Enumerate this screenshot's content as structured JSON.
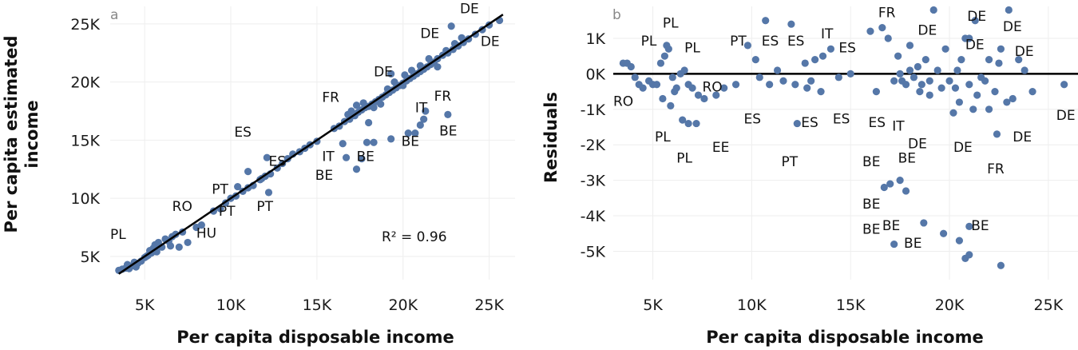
{
  "colors": {
    "points": "#5577a8",
    "line": "#000000",
    "grid": "#eeeeee"
  },
  "chart_data": [
    {
      "panel": "a",
      "type": "scatter",
      "xlabel": "Per capita disposable income",
      "ylabel": "Per capita estimated income",
      "xlim": [
        3000,
        26500
      ],
      "ylim": [
        3000,
        26500
      ],
      "x_ticks": [
        5000,
        10000,
        15000,
        20000,
        25000
      ],
      "x_tick_labels": [
        "5K",
        "10K",
        "15K",
        "20K",
        "25K"
      ],
      "y_ticks": [
        5000,
        10000,
        15000,
        20000,
        25000
      ],
      "y_tick_labels": [
        "5K",
        "10K",
        "15K",
        "20K",
        "25K"
      ],
      "fit_line": [
        [
          3500,
          3500
        ],
        [
          25800,
          25800
        ]
      ],
      "annotation": "R² = 0.96",
      "points": [
        [
          3500,
          3800
        ],
        [
          3700,
          3900
        ],
        [
          3900,
          4000
        ],
        [
          4100,
          3950
        ],
        [
          4300,
          4200
        ],
        [
          4500,
          4100
        ],
        [
          4600,
          4400
        ],
        [
          4800,
          4600
        ],
        [
          5000,
          4900
        ],
        [
          5200,
          5100
        ],
        [
          5400,
          5300
        ],
        [
          5500,
          5700
        ],
        [
          5600,
          6000
        ],
        [
          5800,
          6200
        ],
        [
          6000,
          5800
        ],
        [
          6200,
          6500
        ],
        [
          6400,
          6300
        ],
        [
          6600,
          6700
        ],
        [
          6800,
          6900
        ],
        [
          7200,
          7100
        ],
        [
          4000,
          4300
        ],
        [
          4400,
          4500
        ],
        [
          5100,
          5000
        ],
        [
          5300,
          5500
        ],
        [
          5700,
          5400
        ],
        [
          6500,
          5900
        ],
        [
          7000,
          5800
        ],
        [
          7500,
          6200
        ],
        [
          8000,
          7500
        ],
        [
          8300,
          7700
        ],
        [
          9000,
          8900
        ],
        [
          9400,
          9100
        ],
        [
          9700,
          9600
        ],
        [
          10000,
          10000
        ],
        [
          10300,
          10200
        ],
        [
          10700,
          10600
        ],
        [
          11000,
          10900
        ],
        [
          11300,
          11100
        ],
        [
          11700,
          11600
        ],
        [
          12000,
          11900
        ],
        [
          12300,
          12100
        ],
        [
          12700,
          12600
        ],
        [
          13000,
          13000
        ],
        [
          13300,
          13400
        ],
        [
          13600,
          13800
        ],
        [
          14000,
          14000
        ],
        [
          14300,
          14300
        ],
        [
          14600,
          14600
        ],
        [
          15000,
          14900
        ],
        [
          10400,
          11000
        ],
        [
          11000,
          12300
        ],
        [
          12100,
          13500
        ],
        [
          11800,
          11700
        ],
        [
          12200,
          10500
        ],
        [
          16000,
          16000
        ],
        [
          16300,
          16200
        ],
        [
          16600,
          16600
        ],
        [
          16900,
          16800
        ],
        [
          17200,
          17100
        ],
        [
          17400,
          17400
        ],
        [
          17600,
          17600
        ],
        [
          17800,
          17800
        ],
        [
          18000,
          17900
        ],
        [
          18200,
          18100
        ],
        [
          18400,
          18300
        ],
        [
          18600,
          18500
        ],
        [
          18800,
          18700
        ],
        [
          19000,
          18900
        ],
        [
          19200,
          19100
        ],
        [
          19400,
          19300
        ],
        [
          19600,
          19500
        ],
        [
          19800,
          19700
        ],
        [
          20000,
          19900
        ],
        [
          20200,
          20100
        ],
        [
          20400,
          20300
        ],
        [
          20600,
          20500
        ],
        [
          20800,
          20700
        ],
        [
          21000,
          20900
        ],
        [
          21200,
          21100
        ],
        [
          21400,
          21300
        ],
        [
          21600,
          21500
        ],
        [
          21800,
          21700
        ],
        [
          22000,
          22000
        ],
        [
          22300,
          22300
        ],
        [
          22600,
          22500
        ],
        [
          22900,
          22800
        ],
        [
          23200,
          23100
        ],
        [
          23500,
          23400
        ],
        [
          23800,
          23700
        ],
        [
          24200,
          24100
        ],
        [
          24600,
          24500
        ],
        [
          25000,
          24900
        ],
        [
          25600,
          25300
        ],
        [
          17000,
          17500
        ],
        [
          16800,
          17200
        ],
        [
          17300,
          18000
        ],
        [
          17700,
          18200
        ],
        [
          18300,
          17800
        ],
        [
          18700,
          18100
        ],
        [
          19100,
          19400
        ],
        [
          19500,
          20000
        ],
        [
          20100,
          20600
        ],
        [
          20500,
          21000
        ],
        [
          21000,
          21400
        ],
        [
          21500,
          22000
        ],
        [
          22000,
          21300
        ],
        [
          22500,
          22700
        ],
        [
          23000,
          23300
        ],
        [
          23400,
          23800
        ],
        [
          19300,
          20700
        ],
        [
          22800,
          24800
        ],
        [
          16500,
          14700
        ],
        [
          16700,
          13500
        ],
        [
          17300,
          12500
        ],
        [
          17600,
          13400
        ],
        [
          17900,
          14800
        ],
        [
          18300,
          14800
        ],
        [
          19300,
          15100
        ],
        [
          20300,
          15600
        ],
        [
          20700,
          15600
        ],
        [
          21000,
          16300
        ],
        [
          21200,
          16800
        ],
        [
          22600,
          17200
        ],
        [
          21300,
          17500
        ],
        [
          18000,
          16500
        ],
        [
          20000,
          19700
        ]
      ],
      "point_labels": [
        {
          "text": "DE",
          "x": 23300,
          "y": 25900
        },
        {
          "text": "DE",
          "x": 21000,
          "y": 23800
        },
        {
          "text": "DE",
          "x": 24500,
          "y": 23100
        },
        {
          "text": "DE",
          "x": 18300,
          "y": 20500
        },
        {
          "text": "FR",
          "x": 15300,
          "y": 18300
        },
        {
          "text": "FR",
          "x": 21800,
          "y": 18400
        },
        {
          "text": "IT",
          "x": 20700,
          "y": 17400
        },
        {
          "text": "BE",
          "x": 22100,
          "y": 15400
        },
        {
          "text": "BE",
          "x": 19900,
          "y": 14500
        },
        {
          "text": "ES",
          "x": 10200,
          "y": 15300
        },
        {
          "text": "ES",
          "x": 12200,
          "y": 12800
        },
        {
          "text": "IT",
          "x": 15300,
          "y": 13200
        },
        {
          "text": "BE",
          "x": 17300,
          "y": 13200
        },
        {
          "text": "BE",
          "x": 14900,
          "y": 11600
        },
        {
          "text": "PT",
          "x": 8900,
          "y": 10400
        },
        {
          "text": "RO",
          "x": 6600,
          "y": 8900
        },
        {
          "text": "PT",
          "x": 9300,
          "y": 8500
        },
        {
          "text": "PT",
          "x": 11500,
          "y": 8900
        },
        {
          "text": "HU",
          "x": 8000,
          "y": 6600
        },
        {
          "text": "PL",
          "x": 3000,
          "y": 6500
        }
      ]
    },
    {
      "panel": "b",
      "type": "scatter",
      "xlabel": "Per capita disposable income",
      "ylabel": "Residuals",
      "xlim": [
        3000,
        26500
      ],
      "ylim": [
        -5800,
        1900
      ],
      "x_ticks": [
        5000,
        10000,
        15000,
        20000,
        25000
      ],
      "x_tick_labels": [
        "5K",
        "10K",
        "15K",
        "20K",
        "25K"
      ],
      "y_ticks": [
        1000,
        0,
        -1000,
        -2000,
        -3000,
        -4000,
        -5000
      ],
      "y_tick_labels": [
        "1K",
        "0K",
        "-1K",
        "-2K",
        "-3K",
        "-4K",
        "-5K"
      ],
      "reference_line": 0,
      "points": [
        [
          3500,
          300
        ],
        [
          3700,
          300
        ],
        [
          3900,
          200
        ],
        [
          4100,
          -100
        ],
        [
          4300,
          -300
        ],
        [
          4500,
          -400
        ],
        [
          4800,
          -200
        ],
        [
          5000,
          -300
        ],
        [
          5200,
          -300
        ],
        [
          5400,
          300
        ],
        [
          5600,
          500
        ],
        [
          5700,
          800
        ],
        [
          5800,
          700
        ],
        [
          6000,
          -100
        ],
        [
          6200,
          -400
        ],
        [
          6400,
          0
        ],
        [
          6600,
          100
        ],
        [
          6800,
          -300
        ],
        [
          7000,
          -400
        ],
        [
          7300,
          -600
        ],
        [
          5500,
          -700
        ],
        [
          5900,
          -900
        ],
        [
          6100,
          -500
        ],
        [
          6500,
          -1300
        ],
        [
          6800,
          -1400
        ],
        [
          7200,
          -1400
        ],
        [
          7600,
          -700
        ],
        [
          8200,
          -600
        ],
        [
          8600,
          -400
        ],
        [
          9200,
          -300
        ],
        [
          9800,
          800
        ],
        [
          10200,
          400
        ],
        [
          10400,
          -100
        ],
        [
          10700,
          1500
        ],
        [
          10900,
          -300
        ],
        [
          11300,
          100
        ],
        [
          11600,
          -200
        ],
        [
          12000,
          1400
        ],
        [
          12200,
          -300
        ],
        [
          12300,
          -1400
        ],
        [
          12700,
          300
        ],
        [
          13000,
          -200
        ],
        [
          13200,
          400
        ],
        [
          13600,
          500
        ],
        [
          14000,
          700
        ],
        [
          14400,
          -100
        ],
        [
          15000,
          0
        ],
        [
          12800,
          -400
        ],
        [
          13500,
          -500
        ],
        [
          16000,
          1200
        ],
        [
          16300,
          -500
        ],
        [
          16600,
          1300
        ],
        [
          16900,
          1000
        ],
        [
          17200,
          -200
        ],
        [
          17400,
          500
        ],
        [
          17600,
          -200
        ],
        [
          17800,
          -300
        ],
        [
          18000,
          100
        ],
        [
          18200,
          -100
        ],
        [
          18400,
          200
        ],
        [
          18600,
          -300
        ],
        [
          18800,
          400
        ],
        [
          19000,
          -200
        ],
        [
          19200,
          1800
        ],
        [
          19400,
          100
        ],
        [
          19600,
          -400
        ],
        [
          19800,
          700
        ],
        [
          20000,
          -200
        ],
        [
          20200,
          -1100
        ],
        [
          20400,
          100
        ],
        [
          20600,
          400
        ],
        [
          20800,
          1000
        ],
        [
          21000,
          -300
        ],
        [
          21200,
          -1000
        ],
        [
          21400,
          -600
        ],
        [
          21600,
          -100
        ],
        [
          21800,
          -200
        ],
        [
          22000,
          400
        ],
        [
          22300,
          -500
        ],
        [
          22600,
          700
        ],
        [
          22900,
          -800
        ],
        [
          23200,
          -700
        ],
        [
          23500,
          400
        ],
        [
          23800,
          100
        ],
        [
          24200,
          -500
        ],
        [
          25800,
          -300
        ],
        [
          21300,
          1500
        ],
        [
          23000,
          1800
        ],
        [
          22400,
          -1700
        ],
        [
          22000,
          -1000
        ],
        [
          20500,
          -800
        ],
        [
          18000,
          800
        ],
        [
          17500,
          0
        ],
        [
          18500,
          -500
        ],
        [
          19000,
          -600
        ],
        [
          20300,
          -400
        ],
        [
          21000,
          1000
        ],
        [
          22500,
          300
        ],
        [
          17000,
          -3100
        ],
        [
          17500,
          -3000
        ],
        [
          17800,
          -3300
        ],
        [
          16700,
          -3200
        ],
        [
          17200,
          -4800
        ],
        [
          18700,
          -4200
        ],
        [
          19700,
          -4500
        ],
        [
          20500,
          -4700
        ],
        [
          21000,
          -4300
        ],
        [
          20800,
          -5200
        ],
        [
          21000,
          -5100
        ],
        [
          22600,
          -5400
        ]
      ],
      "point_labels": [
        {
          "text": "FR",
          "x": 16400,
          "y": 1600
        },
        {
          "text": "PL",
          "x": 5500,
          "y": 1300
        },
        {
          "text": "PL",
          "x": 4400,
          "y": 800
        },
        {
          "text": "PL",
          "x": 6600,
          "y": 600
        },
        {
          "text": "PT",
          "x": 8900,
          "y": 800
        },
        {
          "text": "ES",
          "x": 10500,
          "y": 800
        },
        {
          "text": "ES",
          "x": 11800,
          "y": 800
        },
        {
          "text": "IT",
          "x": 13500,
          "y": 1000
        },
        {
          "text": "ES",
          "x": 14400,
          "y": 600
        },
        {
          "text": "DE",
          "x": 18400,
          "y": 1100
        },
        {
          "text": "DE",
          "x": 20900,
          "y": 1500
        },
        {
          "text": "DE",
          "x": 22700,
          "y": 1200
        },
        {
          "text": "DE",
          "x": 20800,
          "y": 700
        },
        {
          "text": "DE",
          "x": 23300,
          "y": 500
        },
        {
          "text": "DE",
          "x": 25400,
          "y": -1300
        },
        {
          "text": "DE",
          "x": 23200,
          "y": -1900
        },
        {
          "text": "DE",
          "x": 17900,
          "y": -2100
        },
        {
          "text": "DE",
          "x": 20200,
          "y": -2200
        },
        {
          "text": "FR",
          "x": 21900,
          "y": -2800
        },
        {
          "text": "RO",
          "x": 3000,
          "y": -900
        },
        {
          "text": "RO",
          "x": 7500,
          "y": -500
        },
        {
          "text": "PL",
          "x": 5100,
          "y": -1900
        },
        {
          "text": "PL",
          "x": 6200,
          "y": -2500
        },
        {
          "text": "EE",
          "x": 8000,
          "y": -2200
        },
        {
          "text": "ES",
          "x": 9600,
          "y": -1400
        },
        {
          "text": "ES",
          "x": 12500,
          "y": -1500
        },
        {
          "text": "ES",
          "x": 14100,
          "y": -1400
        },
        {
          "text": "ES",
          "x": 15900,
          "y": -1500
        },
        {
          "text": "IT",
          "x": 17100,
          "y": -1600
        },
        {
          "text": "PT",
          "x": 11500,
          "y": -2600
        },
        {
          "text": "BE",
          "x": 15600,
          "y": -2600
        },
        {
          "text": "BE",
          "x": 17400,
          "y": -2500
        },
        {
          "text": "BE",
          "x": 15600,
          "y": -3800
        },
        {
          "text": "BE",
          "x": 15600,
          "y": -4500
        },
        {
          "text": "BE",
          "x": 16600,
          "y": -4400
        },
        {
          "text": "BE",
          "x": 17700,
          "y": -4900
        },
        {
          "text": "BE",
          "x": 21100,
          "y": -4400
        }
      ]
    }
  ]
}
